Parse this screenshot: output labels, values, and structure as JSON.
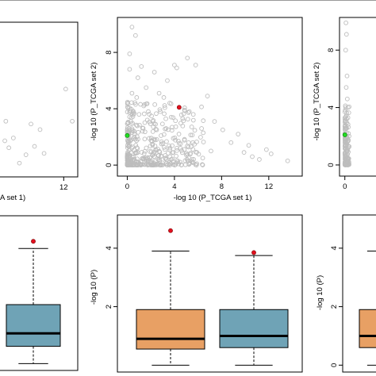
{
  "colors": {
    "point": "#bdbdbd",
    "highlight_red": "#e3101f",
    "highlight_green": "#22dd22",
    "box_orange": "#e8a064",
    "box_teal": "#6fa3b6",
    "panel_border": "#000000"
  },
  "chart_data": [
    {
      "panel": "top-left",
      "type": "scatter",
      "xlabel": "-log 10 (P_TCGA set 1)",
      "xlabel_visible": "A set 1)",
      "ylabel": "",
      "xlim": [
        -0.5,
        14
      ],
      "ylim": [
        -0.5,
        10
      ],
      "xticks": [
        12
      ],
      "yticks": [],
      "cropped": "left",
      "points_grey": [
        [
          12.4,
          5.5
        ],
        [
          13.7,
          3.2
        ],
        [
          6.2,
          1.4
        ],
        [
          4.5,
          0.8
        ],
        [
          7.3,
          2.6
        ],
        [
          5.5,
          3.0
        ],
        [
          1.1,
          1.3
        ],
        [
          0.5,
          3.2
        ],
        [
          3.2,
          0.2
        ],
        [
          2.0,
          2.0
        ],
        [
          8.1,
          0.9
        ],
        [
          0.3,
          1.8
        ]
      ]
    },
    {
      "panel": "top-middle",
      "type": "scatter",
      "xlabel": "-log 10 (P_TCGA set 1)",
      "ylabel": "-log 10 (P_TCGA set 2)",
      "xlim": [
        -0.5,
        14.5
      ],
      "ylim": [
        -0.5,
        10.2
      ],
      "xticks": [
        0,
        4,
        8,
        12
      ],
      "yticks": [
        0,
        4,
        8
      ],
      "points_grey": [
        [
          0.4,
          9.8
        ],
        [
          0.7,
          9.2
        ],
        [
          0.2,
          7.9
        ],
        [
          1.2,
          7.0
        ],
        [
          2.3,
          6.6
        ],
        [
          3.4,
          6.0
        ],
        [
          4.0,
          7.1
        ],
        [
          4.2,
          6.9
        ],
        [
          5.1,
          7.6
        ],
        [
          5.8,
          7.1
        ],
        [
          0.4,
          5.1
        ],
        [
          0.8,
          4.8
        ],
        [
          1.6,
          5.5
        ],
        [
          2.8,
          3.8
        ],
        [
          3.6,
          4.4
        ],
        [
          4.7,
          3.3
        ],
        [
          5.6,
          3.6
        ],
        [
          6.3,
          2.6
        ],
        [
          6.8,
          4.9
        ],
        [
          7.4,
          3.1
        ],
        [
          8.1,
          2.5
        ],
        [
          8.8,
          1.6
        ],
        [
          9.4,
          2.2
        ],
        [
          9.9,
          0.9
        ],
        [
          10.3,
          1.4
        ],
        [
          10.6,
          0.6
        ],
        [
          11.2,
          0.4
        ],
        [
          11.8,
          1.1
        ],
        [
          12.2,
          0.8
        ],
        [
          13.6,
          0.3
        ],
        [
          7.1,
          1.0
        ],
        [
          6.4,
          0.5
        ],
        [
          3.3,
          2.6
        ],
        [
          2.4,
          2.9
        ],
        [
          1.7,
          3.2
        ],
        [
          0.6,
          2.0
        ],
        [
          1.3,
          2.4
        ],
        [
          2.1,
          1.7
        ],
        [
          2.9,
          1.5
        ],
        [
          3.9,
          1.9
        ],
        [
          4.5,
          1.2
        ],
        [
          5.2,
          1.6
        ],
        [
          5.9,
          0.9
        ],
        [
          0.3,
          3.1
        ],
        [
          1.0,
          3.6
        ],
        [
          1.4,
          4.2
        ],
        [
          0.9,
          6.2
        ],
        [
          0.2,
          6.8
        ],
        [
          2.7,
          5.1
        ],
        [
          3.1,
          4.8
        ]
      ],
      "points_red": [
        [
          4.4,
          4.1
        ]
      ],
      "points_green": [
        [
          0.0,
          2.1
        ]
      ]
    },
    {
      "panel": "top-right",
      "type": "scatter",
      "xlabel": "",
      "ylabel": "-log 10 (P_TCGA set 2)",
      "xlim": [
        -0.5,
        14
      ],
      "ylim": [
        -0.5,
        10
      ],
      "xticks": [
        0
      ],
      "yticks": [
        0,
        4,
        8
      ],
      "cropped": "right",
      "points_grey": [
        [
          0.4,
          9.9
        ],
        [
          0.6,
          9.1
        ],
        [
          0.3,
          8.0
        ],
        [
          0.8,
          6.2
        ],
        [
          0.5,
          5.4
        ],
        [
          0.9,
          4.6
        ],
        [
          0.3,
          4.0
        ],
        [
          0.7,
          3.2
        ],
        [
          0.4,
          2.6
        ],
        [
          0.9,
          1.9
        ],
        [
          0.2,
          1.2
        ],
        [
          0.6,
          0.7
        ]
      ],
      "points_green": [
        [
          0.0,
          2.1
        ]
      ]
    },
    {
      "panel": "bottom-left",
      "type": "boxplot",
      "ylabel": "",
      "ylim": [
        -0.1,
        5.0
      ],
      "yticks": [],
      "cropped": "left",
      "boxes": [
        {
          "color": "teal",
          "whisker_low": 0.0,
          "q1": 0.6,
          "median": 1.05,
          "q3": 2.05,
          "whisker_high": 4.0,
          "outliers": [
            4.25
          ]
        }
      ]
    },
    {
      "panel": "bottom-middle",
      "type": "boxplot",
      "ylabel": "-log 10 (P)",
      "ylim": [
        -0.1,
        5.0
      ],
      "yticks": [
        2,
        4
      ],
      "boxes": [
        {
          "color": "orange",
          "whisker_low": 0.0,
          "q1": 0.55,
          "median": 0.9,
          "q3": 1.9,
          "whisker_high": 3.9,
          "outliers": [
            4.6
          ]
        },
        {
          "color": "teal",
          "whisker_low": 0.0,
          "q1": 0.6,
          "median": 1.0,
          "q3": 1.9,
          "whisker_high": 3.75,
          "outliers": [
            3.85
          ]
        }
      ]
    },
    {
      "panel": "bottom-right",
      "type": "boxplot",
      "ylabel": "-log 10 (P)",
      "ylim": [
        -0.1,
        5.0
      ],
      "yticks": [
        0,
        2,
        4
      ],
      "cropped": "right",
      "boxes": [
        {
          "color": "orange",
          "whisker_low": 0.0,
          "q1": 0.6,
          "median": 1.0,
          "q3": 1.9,
          "whisker_high": 3.9,
          "outliers": []
        }
      ]
    }
  ]
}
